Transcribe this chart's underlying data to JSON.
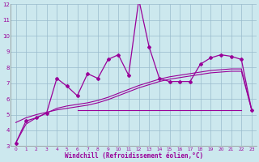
{
  "x": [
    0,
    1,
    2,
    3,
    4,
    5,
    6,
    7,
    8,
    9,
    10,
    11,
    12,
    13,
    14,
    15,
    16,
    17,
    18,
    19,
    20,
    21,
    22,
    23
  ],
  "y_main": [
    3.2,
    4.6,
    4.8,
    5.1,
    7.3,
    6.8,
    6.2,
    7.6,
    7.3,
    8.5,
    8.8,
    7.5,
    12.3,
    9.3,
    7.3,
    7.1,
    7.1,
    7.1,
    8.2,
    8.6,
    8.8,
    8.7,
    8.5,
    5.3
  ],
  "y_curve1": [
    3.2,
    4.4,
    4.8,
    5.1,
    5.4,
    5.55,
    5.65,
    5.75,
    5.9,
    6.1,
    6.35,
    6.6,
    6.85,
    7.05,
    7.25,
    7.4,
    7.5,
    7.6,
    7.7,
    7.8,
    7.85,
    7.9,
    7.9,
    5.3
  ],
  "y_curve2": [
    4.5,
    4.8,
    5.0,
    5.15,
    5.3,
    5.4,
    5.5,
    5.6,
    5.75,
    5.95,
    6.2,
    6.45,
    6.7,
    6.9,
    7.1,
    7.25,
    7.35,
    7.45,
    7.55,
    7.65,
    7.7,
    7.75,
    7.75,
    5.3
  ],
  "y_flat": [
    5.3,
    5.3,
    5.3,
    5.3,
    5.3,
    5.3,
    5.3,
    5.3,
    5.3,
    5.3,
    5.3,
    5.3,
    5.3,
    5.3,
    5.3,
    5.3,
    5.3,
    5.3,
    5.3,
    5.3,
    5.3,
    5.3,
    5.3,
    5.3
  ],
  "x_flat_start": 6,
  "x_flat_end": 22,
  "line_color": "#990099",
  "bg_color": "#cce8ee",
  "grid_color": "#99bbcc",
  "xlabel": "Windchill (Refroidissement éolien,°C)",
  "ylim": [
    3,
    12
  ],
  "xlim": [
    -0.5,
    23.5
  ],
  "yticks": [
    3,
    4,
    5,
    6,
    7,
    8,
    9,
    10,
    11,
    12
  ],
  "xticks": [
    0,
    1,
    2,
    3,
    4,
    5,
    6,
    7,
    8,
    9,
    10,
    11,
    12,
    13,
    14,
    15,
    16,
    17,
    18,
    19,
    20,
    21,
    22,
    23
  ]
}
